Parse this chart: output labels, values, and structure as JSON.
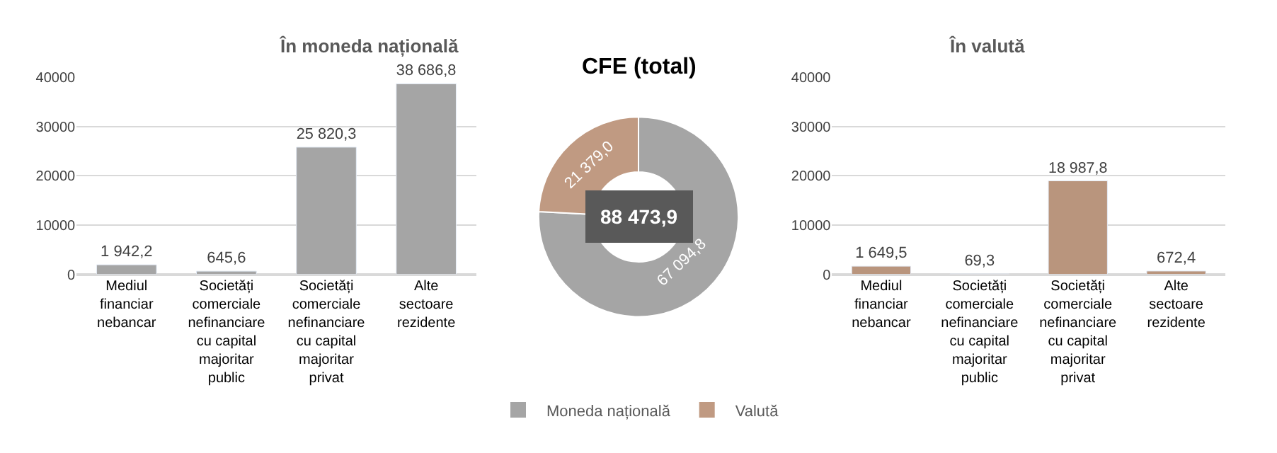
{
  "chart_data": [
    {
      "type": "bar",
      "title": "În moneda națională",
      "categories": [
        "Mediul financiar nebancar",
        "Societăți comerciale nefinanciare cu capital majoritar public",
        "Societăți comerciale nefinanciare cu capital majoritar privat",
        "Alte sectoare rezidente"
      ],
      "values": [
        1942.2,
        645.6,
        25820.3,
        38686.8
      ],
      "color": "#a5a5a5",
      "value_labels": [
        "1 942,2",
        "645,6",
        "25 820,3",
        "38 686,8"
      ],
      "ylim": [
        0,
        40000
      ],
      "yticks": [
        0,
        10000,
        20000,
        30000,
        40000
      ],
      "grid": "y"
    },
    {
      "type": "donut",
      "title": "CFE (total)",
      "categories": [
        "Moneda națională",
        "Valută"
      ],
      "values": [
        67094.8,
        21379.0
      ],
      "colors": [
        "#a5a5a5",
        "#c09a82"
      ],
      "value_labels": [
        "67 094,8",
        "21 379,0"
      ],
      "annotations": [
        "88 473,9"
      ],
      "legend": "bottom"
    },
    {
      "type": "bar",
      "title": "În valută",
      "categories": [
        "Mediul financiar nebancar",
        "Societăți comerciale nefinanciare cu capital majoritar public",
        "Societăți comerciale nefinanciare cu capital majoritar privat",
        "Alte sectoare rezidente"
      ],
      "values": [
        1649.5,
        69.3,
        18987.8,
        672.4
      ],
      "color": "#b9957d",
      "value_labels": [
        "1 649,5",
        "69,3",
        "18 987,8",
        "672,4"
      ],
      "ylim": [
        0,
        40000
      ],
      "yticks": [
        0,
        10000,
        20000,
        30000,
        40000
      ],
      "grid": "y"
    }
  ]
}
